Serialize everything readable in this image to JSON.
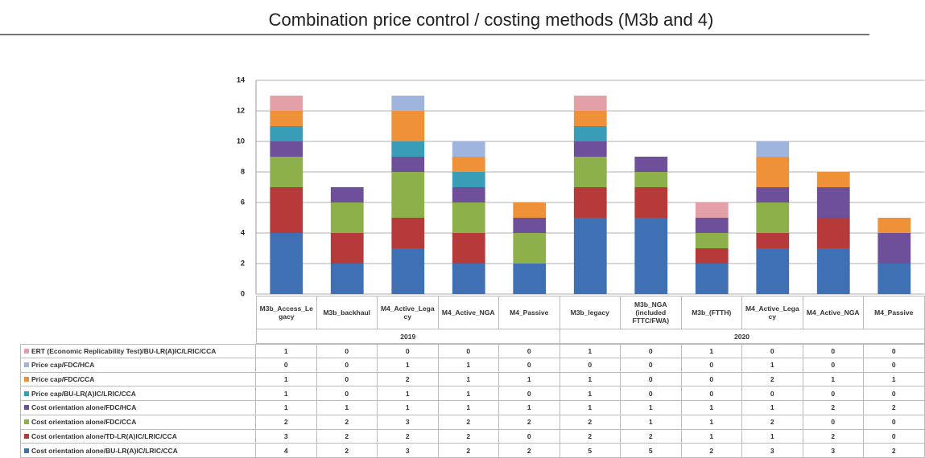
{
  "chart_data": {
    "type": "stacked-bar",
    "title": "Combination price control / costing methods (M3b and 4)",
    "groups": [
      {
        "label": "2019",
        "categories": [
          "M3b_Access_Legacy",
          "M3b_backhaul",
          "M4_Active_Legacy",
          "M4_Active_NGA",
          "M4_Passive"
        ]
      },
      {
        "label": "2020",
        "categories": [
          "M3b_legacy",
          "M3b_NGA (included FTTC/FWA)",
          "M3b_(FTTH)",
          "M4_Active_Legacy",
          "M4_Active_NGA",
          "M4_Passive"
        ]
      }
    ],
    "series": [
      {
        "name": "ERT (Economic Replicability Test)/BU-LR(A)IC/LRIC/CCA",
        "color": "#e3a0a6",
        "values": [
          1,
          0,
          0,
          0,
          0,
          1,
          0,
          1,
          0,
          0,
          0
        ]
      },
      {
        "name": "Price cap/FDC/HCA",
        "color": "#9fb5de",
        "values": [
          0,
          0,
          1,
          1,
          0,
          0,
          0,
          0,
          1,
          0,
          0
        ]
      },
      {
        "name": "Price cap/FDC/CCA",
        "color": "#ee9139",
        "values": [
          1,
          0,
          2,
          1,
          1,
          1,
          0,
          0,
          2,
          1,
          1
        ]
      },
      {
        "name": "Price cap/BU-LR(A)IC/LRIC/CCA",
        "color": "#3a9db8",
        "values": [
          1,
          0,
          1,
          1,
          0,
          1,
          0,
          0,
          0,
          0,
          0
        ]
      },
      {
        "name": "Cost orientation alone/FDC/HCA",
        "color": "#6e509a",
        "values": [
          1,
          1,
          1,
          1,
          1,
          1,
          1,
          1,
          1,
          2,
          2
        ]
      },
      {
        "name": "Cost orientation alone/FDC/CCA",
        "color": "#8db04a",
        "values": [
          2,
          2,
          3,
          2,
          2,
          2,
          1,
          1,
          2,
          0,
          0
        ]
      },
      {
        "name": "Cost orientation alone/TD-LR(A)IC/LRIC/CCA",
        "color": "#b73a3a",
        "values": [
          3,
          2,
          2,
          2,
          0,
          2,
          2,
          1,
          1,
          2,
          0
        ]
      },
      {
        "name": "Cost orientation alone/BU-LR(A)IC/LRIC/CCA",
        "color": "#3f70b3",
        "values": [
          4,
          2,
          3,
          2,
          2,
          5,
          5,
          2,
          3,
          3,
          2
        ]
      }
    ],
    "ylim": [
      0,
      14
    ],
    "yticks": [
      0,
      2,
      4,
      6,
      8,
      10,
      12,
      14
    ],
    "grid": true
  }
}
